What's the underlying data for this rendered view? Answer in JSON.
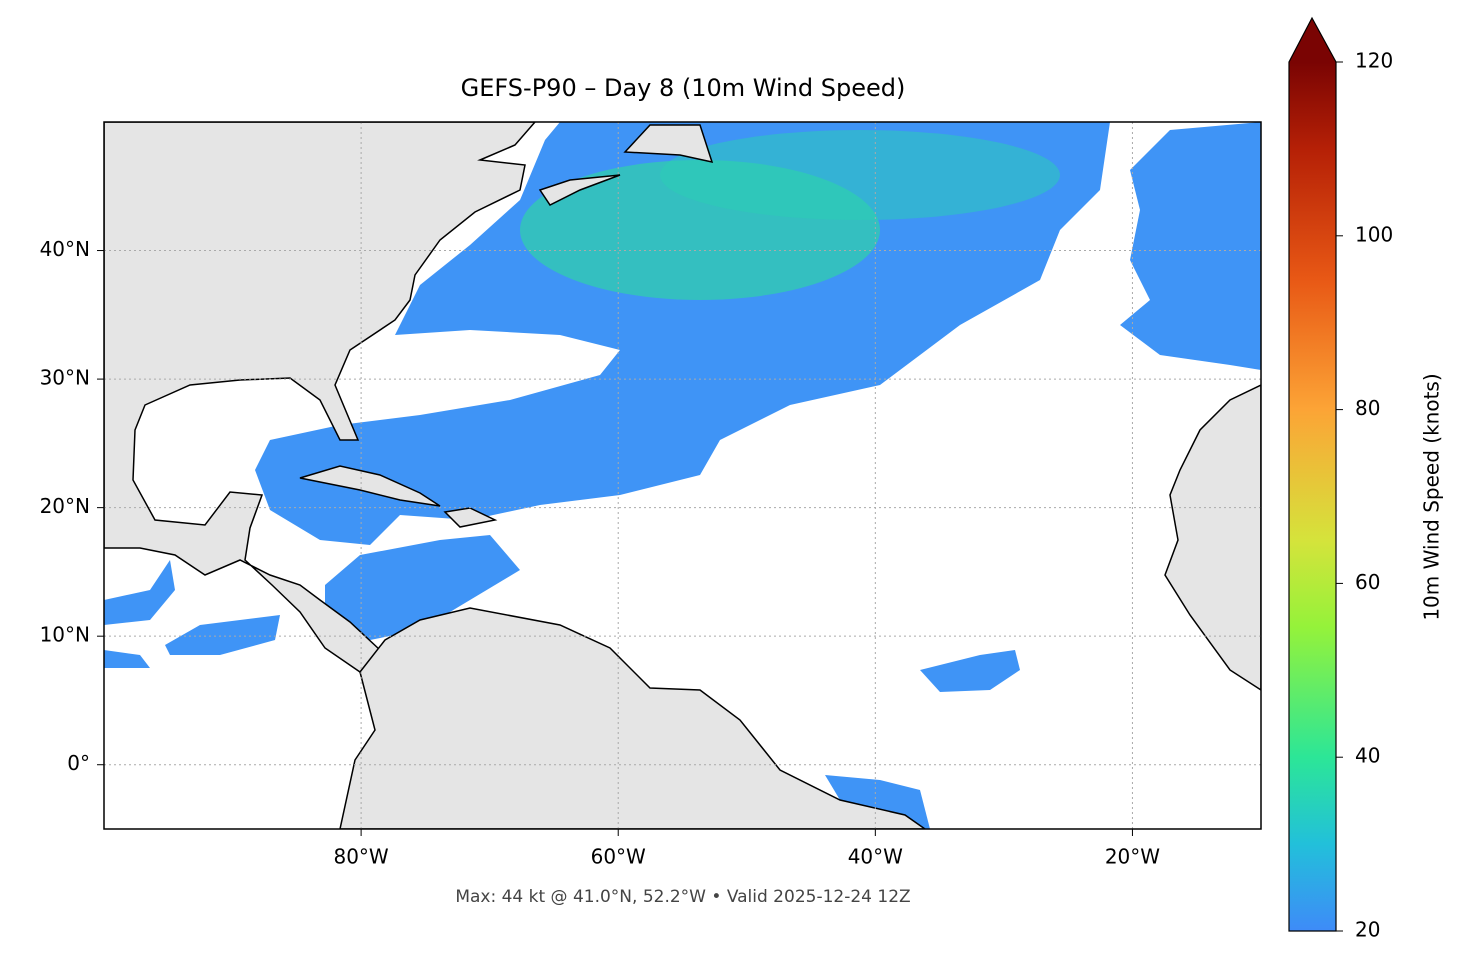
{
  "map": {
    "title": "GEFS-P90 – Day 8 (10m Wind Speed)",
    "footer": "Max: 44 kt @ 41.0°N, 52.2°W • Valid 2025-12-24 12Z",
    "lon_lim": [
      -100,
      -10
    ],
    "lat_lim": [
      -5,
      50
    ],
    "lon_ticks": [
      {
        "value": -80,
        "label": "80°W"
      },
      {
        "value": -60,
        "label": "60°W"
      },
      {
        "value": -40,
        "label": "40°W"
      },
      {
        "value": -20,
        "label": "20°W"
      }
    ],
    "lat_ticks": [
      {
        "value": 0,
        "label": "0°"
      },
      {
        "value": 10,
        "label": "10°N"
      },
      {
        "value": 20,
        "label": "20°N"
      },
      {
        "value": 30,
        "label": "30°N"
      },
      {
        "value": 40,
        "label": "40°N"
      }
    ],
    "colorbar": {
      "label": "10m Wind Speed (knots)",
      "lim": [
        20,
        120
      ],
      "ticks": [
        20,
        40,
        60,
        80,
        100,
        120
      ]
    }
  }
}
